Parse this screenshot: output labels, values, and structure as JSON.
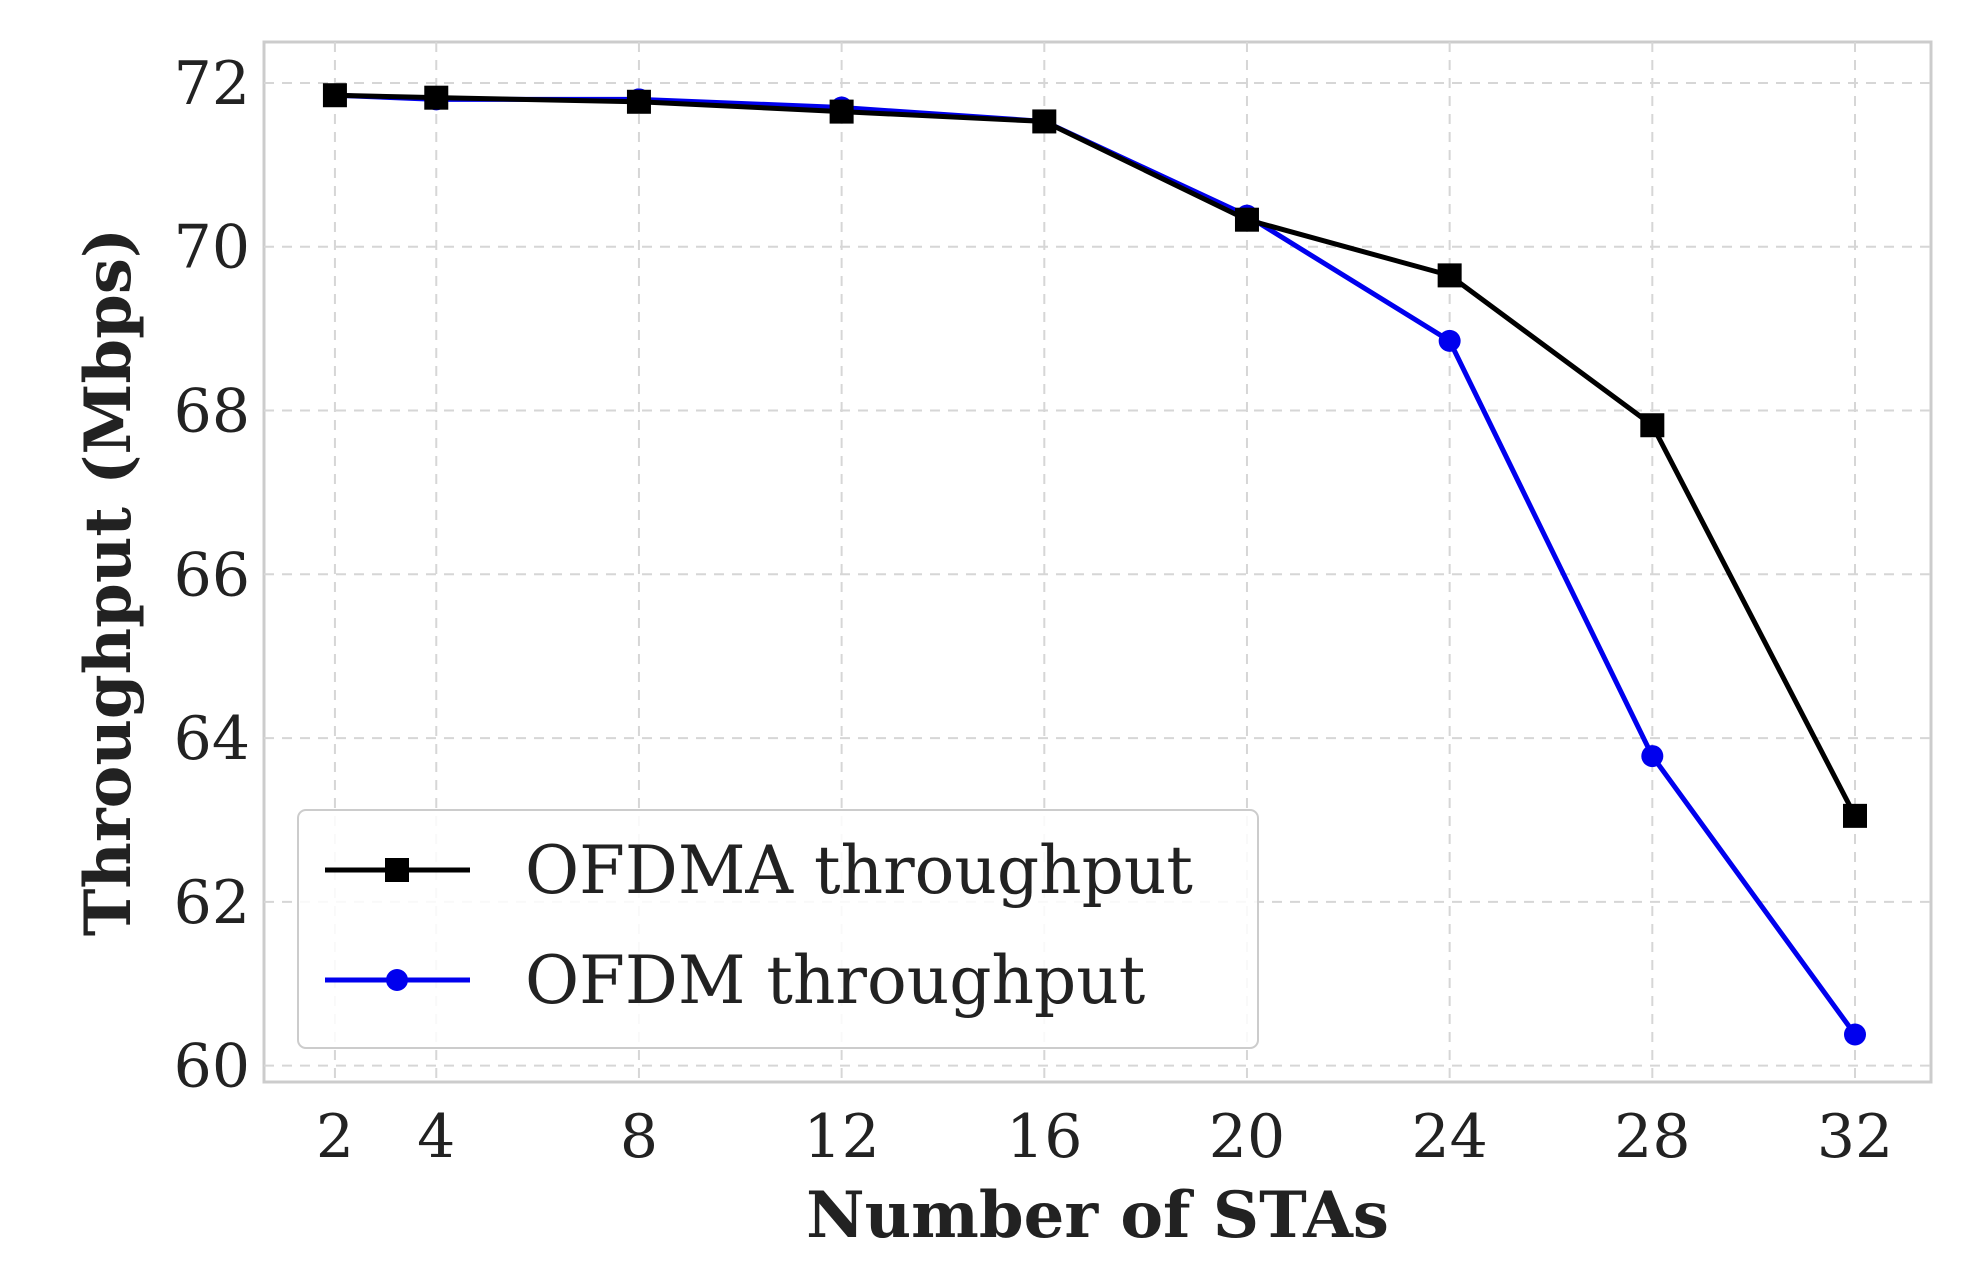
{
  "chart_data": {
    "type": "line",
    "title": "",
    "xlabel": "Number of STAs",
    "ylabel": "Throughput (Mbps)",
    "x": [
      2,
      4,
      8,
      12,
      16,
      20,
      24,
      28,
      32
    ],
    "xticks": [
      2,
      4,
      8,
      12,
      16,
      20,
      24,
      28,
      32
    ],
    "yticks": [
      60,
      62,
      64,
      66,
      68,
      70,
      72
    ],
    "xlim": [
      0.6,
      33.5
    ],
    "ylim": [
      59.8,
      72.5
    ],
    "grid": true,
    "legend": "lower-left",
    "series": [
      {
        "name": "OFDMA throughput",
        "values": [
          71.85,
          71.82,
          71.77,
          71.65,
          71.53,
          70.33,
          69.65,
          67.82,
          63.05
        ],
        "color": "#000000",
        "marker": "square"
      },
      {
        "name": "OFDM throughput",
        "values": [
          71.85,
          71.8,
          71.8,
          71.7,
          71.53,
          70.38,
          68.85,
          63.78,
          60.38
        ],
        "color": "#0000ee",
        "marker": "circle"
      }
    ]
  }
}
